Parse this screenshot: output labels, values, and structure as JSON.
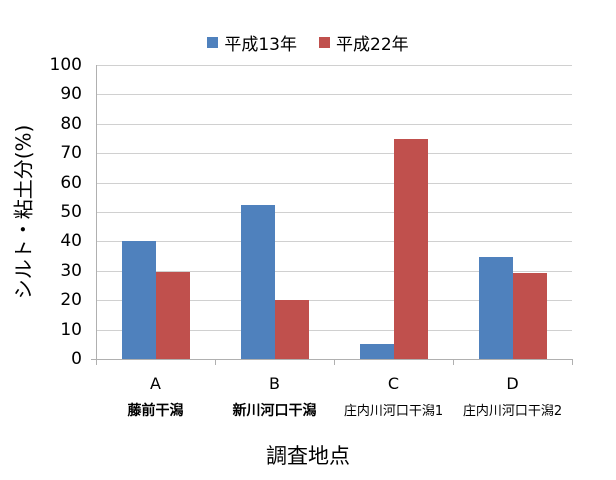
{
  "chart_data": {
    "type": "bar",
    "title": "",
    "categories": [
      "A",
      "B",
      "C",
      "D"
    ],
    "category_names": [
      "藤前干潟",
      "新川河口干潟",
      "庄内川河口干潟1",
      "庄内川河口干潟2"
    ],
    "series": [
      {
        "name": "平成13年",
        "color": "#4f81bd",
        "values": [
          40,
          52.3,
          5,
          34.7
        ]
      },
      {
        "name": "平成22年",
        "color": "#c0504d",
        "values": [
          29.5,
          20,
          75,
          29.3
        ]
      }
    ],
    "xlabel": "調査地点",
    "ylabel": "シルト・粘土分(%)",
    "ylim": [
      0,
      100
    ],
    "yticks": [
      "0",
      "10",
      "20",
      "30",
      "40",
      "50",
      "60",
      "70",
      "80",
      "90",
      "100"
    ],
    "grid": true,
    "legend_position": "top"
  }
}
